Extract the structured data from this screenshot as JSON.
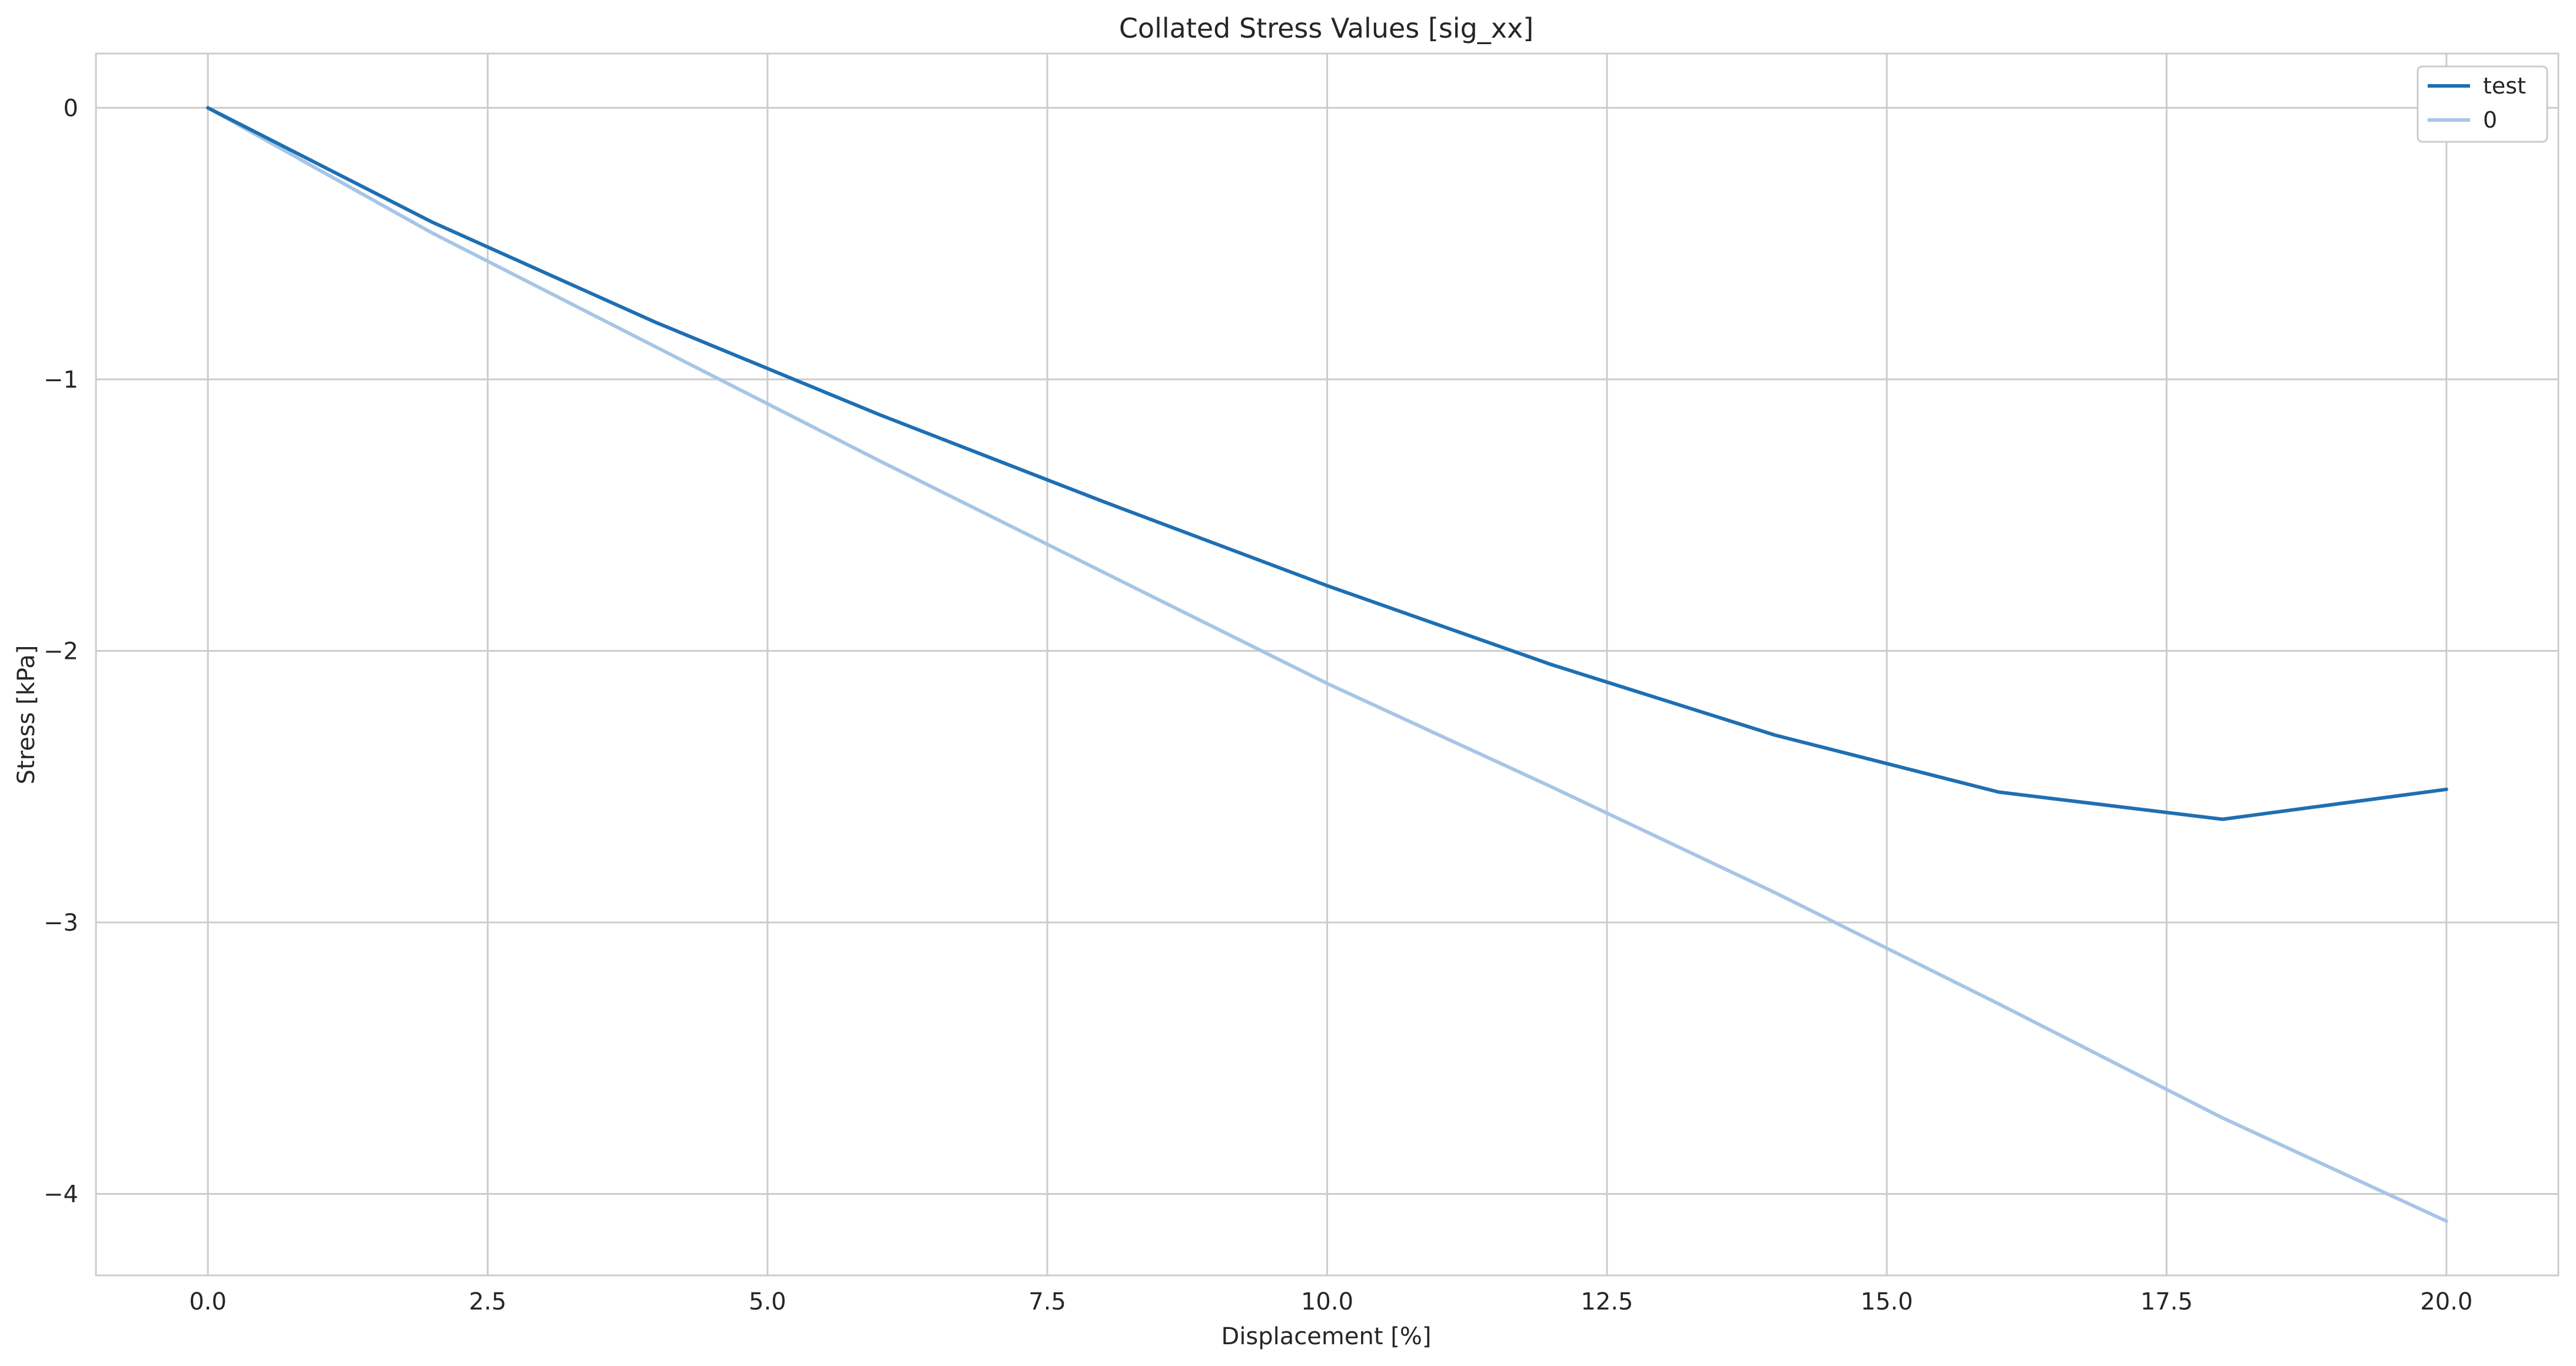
{
  "chart_data": {
    "type": "line",
    "title": "Collated Stress Values [sig_xx]",
    "xlabel": "Displacement [%]",
    "ylabel": "Stress [kPa]",
    "xlim": [
      -1.0,
      21.0
    ],
    "ylim": [
      -4.3,
      0.2
    ],
    "xticks": [
      0.0,
      2.5,
      5.0,
      7.5,
      10.0,
      12.5,
      15.0,
      17.5,
      20.0
    ],
    "xtick_labels": [
      "0.0",
      "2.5",
      "5.0",
      "7.5",
      "10.0",
      "12.5",
      "15.0",
      "17.5",
      "20.0"
    ],
    "yticks": [
      0,
      -1,
      -2,
      -3,
      -4
    ],
    "ytick_labels": [
      "0",
      "−1",
      "−2",
      "−3",
      "−4"
    ],
    "grid": true,
    "legend_position": "top-right",
    "x": [
      0,
      2,
      4,
      6,
      8,
      10,
      12,
      14,
      16,
      18,
      20
    ],
    "series": [
      {
        "name": "test",
        "color": "#1f6fb2",
        "values": [
          0.0,
          -0.42,
          -0.79,
          -1.13,
          -1.45,
          -1.76,
          -2.05,
          -2.31,
          -2.52,
          -2.62,
          -2.51
        ]
      },
      {
        "name": "0",
        "color": "#a7c5e6",
        "values": [
          0.0,
          -0.46,
          -0.88,
          -1.3,
          -1.71,
          -2.12,
          -2.5,
          -2.89,
          -3.3,
          -3.72,
          -4.1
        ]
      }
    ]
  }
}
